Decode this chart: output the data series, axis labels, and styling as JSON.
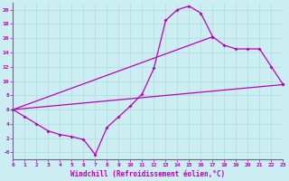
{
  "bg_color": "#cceef2",
  "line_color": "#bb00bb",
  "grid_color": "#aadddd",
  "xlabel": "Windchill (Refroidissement éolien,°C)",
  "xlim": [
    0,
    23
  ],
  "ylim": [
    -1.0,
    21.0
  ],
  "xtick_vals": [
    0,
    1,
    2,
    3,
    4,
    5,
    6,
    7,
    8,
    9,
    10,
    11,
    12,
    13,
    14,
    15,
    16,
    17,
    18,
    19,
    20,
    21,
    22,
    23
  ],
  "ytick_vals": [
    0,
    2,
    4,
    6,
    8,
    10,
    12,
    14,
    16,
    18,
    20
  ],
  "ytick_labels": [
    "-0",
    "2",
    "4",
    "6",
    "8",
    "10",
    "12",
    "14",
    "16",
    "18",
    "20"
  ],
  "curve1_x": [
    0,
    1,
    2,
    3,
    4,
    5,
    6,
    7,
    8,
    9,
    10,
    11,
    12,
    13,
    14,
    15,
    16,
    17
  ],
  "curve1_y": [
    6.0,
    5.0,
    4.0,
    3.0,
    2.5,
    2.2,
    1.8,
    -0.3,
    3.5,
    5.0,
    6.5,
    8.2,
    11.8,
    18.5,
    20.0,
    20.5,
    19.5,
    16.2
  ],
  "curve2_x": [
    0,
    17,
    18,
    19,
    20,
    21,
    22,
    23
  ],
  "curve2_y": [
    6.0,
    16.2,
    15.0,
    14.5,
    14.5,
    14.5,
    12.0,
    9.5
  ],
  "curve3_x": [
    0,
    23
  ],
  "curve3_y": [
    6.0,
    9.5
  ]
}
